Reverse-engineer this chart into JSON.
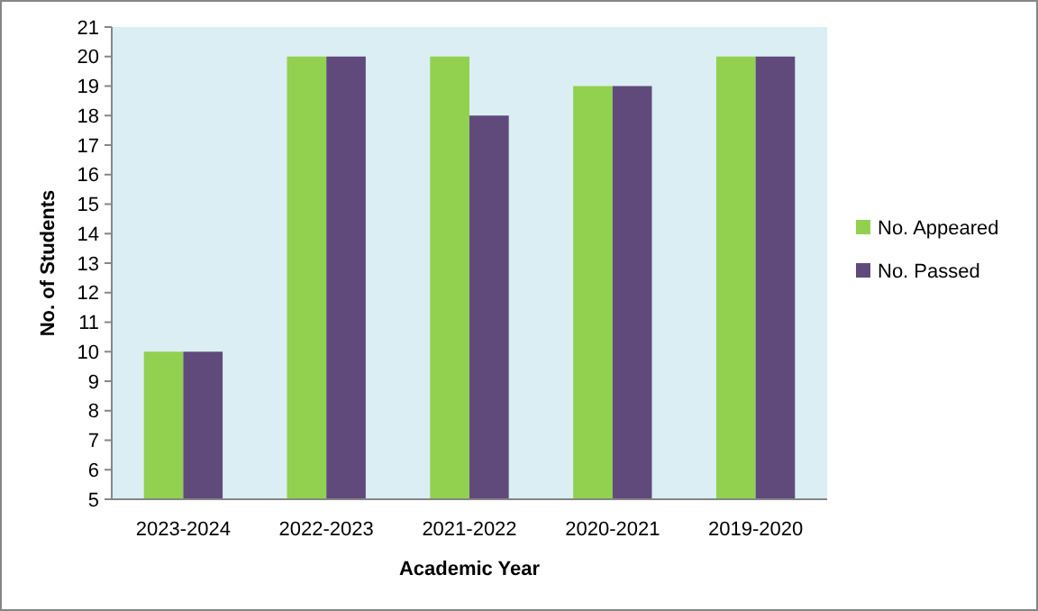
{
  "chart_data": {
    "type": "bar",
    "xlabel": "Academic Year",
    "ylabel": "No. of Students",
    "categories": [
      "2023-2024",
      "2022-2023",
      "2021-2022",
      "2020-2021",
      "2019-2020"
    ],
    "series": [
      {
        "name": "No. Appeared",
        "color": "#92d050",
        "values": [
          10,
          20,
          20,
          19,
          20
        ]
      },
      {
        "name": "No. Passed",
        "color": "#604a7b",
        "values": [
          10,
          20,
          18,
          19,
          20
        ]
      }
    ],
    "ylim": [
      5,
      21
    ],
    "yticks": [
      5,
      6,
      7,
      8,
      9,
      10,
      11,
      12,
      13,
      14,
      15,
      16,
      17,
      18,
      19,
      20,
      21
    ],
    "grid": false,
    "legend": "right"
  }
}
